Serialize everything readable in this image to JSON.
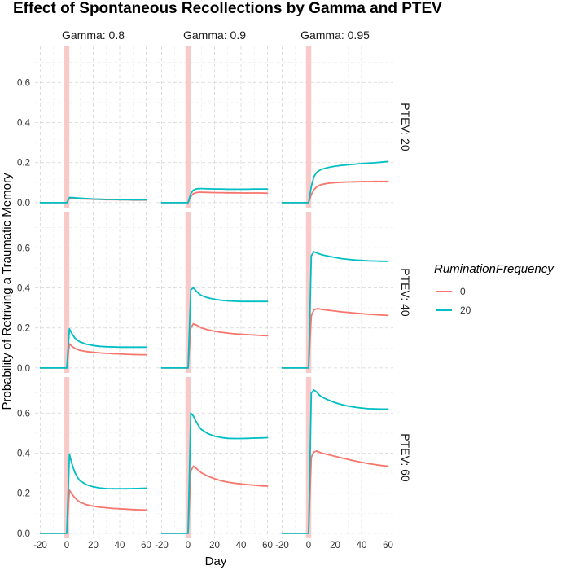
{
  "chart_data": {
    "type": "line",
    "title": "Effect of Spontaneous Recollections by Gamma and PTEV",
    "xlabel": "Day",
    "ylabel": "Probability of Retriving a Traumatic Memory",
    "xlim": [
      -20,
      60
    ],
    "ylim": [
      0,
      0.7
    ],
    "x_ticks": [
      "-20",
      "0",
      "20",
      "40",
      "60"
    ],
    "y_ticks": [
      "0.0",
      "0.2",
      "0.4",
      "0.6"
    ],
    "column_facets": [
      "Gamma: 0.8",
      "Gamma: 0.9",
      "Gamma: 0.95"
    ],
    "row_facets": [
      "PTEV: 20",
      "PTEV: 40",
      "PTEV: 60"
    ],
    "highlight_band": {
      "x": [
        -2,
        2
      ],
      "color": "#f8c4c4"
    },
    "grid": true,
    "legend": {
      "title": "RuminationFrequency",
      "placement": "right",
      "entries": [
        {
          "label": "0",
          "color": "#f8766d"
        },
        {
          "label": "20",
          "color": "#00bfc4"
        }
      ]
    },
    "x": [
      -20,
      0,
      2,
      4,
      6,
      8,
      10,
      15,
      20,
      25,
      30,
      35,
      40,
      45,
      50,
      55,
      60
    ],
    "panels": [
      {
        "gamma": "0.8",
        "ptev": "20",
        "series": [
          {
            "name": "0",
            "values": [
              0.0,
              0.0,
              0.022,
              0.022,
              0.021,
              0.02,
              0.019,
              0.018,
              0.017,
              0.016,
              0.015,
              0.015,
              0.014,
              0.014,
              0.013,
              0.013,
              0.013
            ]
          },
          {
            "name": "20",
            "values": [
              0.0,
              0.0,
              0.025,
              0.026,
              0.024,
              0.023,
              0.022,
              0.02,
              0.018,
              0.017,
              0.016,
              0.016,
              0.015,
              0.015,
              0.014,
              0.014,
              0.014
            ]
          }
        ]
      },
      {
        "gamma": "0.9",
        "ptev": "20",
        "series": [
          {
            "name": "0",
            "values": [
              0.0,
              0.0,
              0.03,
              0.045,
              0.05,
              0.052,
              0.052,
              0.051,
              0.05,
              0.05,
              0.049,
              0.049,
              0.048,
              0.048,
              0.048,
              0.048,
              0.047
            ]
          },
          {
            "name": "20",
            "values": [
              0.0,
              0.0,
              0.045,
              0.062,
              0.068,
              0.07,
              0.07,
              0.069,
              0.068,
              0.068,
              0.067,
              0.067,
              0.067,
              0.067,
              0.068,
              0.068,
              0.068
            ]
          }
        ]
      },
      {
        "gamma": "0.95",
        "ptev": "20",
        "series": [
          {
            "name": "0",
            "values": [
              0.0,
              0.0,
              0.04,
              0.065,
              0.078,
              0.086,
              0.091,
              0.097,
              0.1,
              0.102,
              0.103,
              0.104,
              0.105,
              0.105,
              0.106,
              0.106,
              0.106
            ]
          },
          {
            "name": "20",
            "values": [
              0.0,
              0.0,
              0.08,
              0.13,
              0.15,
              0.16,
              0.167,
              0.176,
              0.182,
              0.186,
              0.189,
              0.192,
              0.195,
              0.197,
              0.199,
              0.202,
              0.205
            ]
          }
        ]
      },
      {
        "gamma": "0.8",
        "ptev": "40",
        "series": [
          {
            "name": "0",
            "values": [
              0.0,
              0.0,
              0.12,
              0.108,
              0.098,
              0.092,
              0.088,
              0.082,
              0.078,
              0.075,
              0.073,
              0.071,
              0.07,
              0.068,
              0.067,
              0.066,
              0.066
            ]
          },
          {
            "name": "20",
            "values": [
              0.0,
              0.0,
              0.195,
              0.17,
              0.15,
              0.138,
              0.13,
              0.118,
              0.112,
              0.108,
              0.106,
              0.105,
              0.104,
              0.104,
              0.104,
              0.104,
              0.104
            ]
          }
        ]
      },
      {
        "gamma": "0.9",
        "ptev": "40",
        "series": [
          {
            "name": "0",
            "values": [
              0.0,
              0.0,
              0.2,
              0.22,
              0.215,
              0.208,
              0.2,
              0.19,
              0.183,
              0.178,
              0.174,
              0.17,
              0.168,
              0.166,
              0.164,
              0.162,
              0.161
            ]
          },
          {
            "name": "20",
            "values": [
              0.0,
              0.0,
              0.39,
              0.4,
              0.385,
              0.372,
              0.362,
              0.35,
              0.343,
              0.338,
              0.335,
              0.333,
              0.332,
              0.332,
              0.332,
              0.332,
              0.332
            ]
          }
        ]
      },
      {
        "gamma": "0.95",
        "ptev": "40",
        "series": [
          {
            "name": "0",
            "values": [
              0.0,
              0.0,
              0.26,
              0.29,
              0.295,
              0.295,
              0.292,
              0.288,
              0.284,
              0.28,
              0.277,
              0.274,
              0.271,
              0.268,
              0.266,
              0.264,
              0.262
            ]
          },
          {
            "name": "20",
            "values": [
              0.0,
              0.0,
              0.56,
              0.58,
              0.575,
              0.57,
              0.565,
              0.558,
              0.552,
              0.546,
              0.542,
              0.539,
              0.537,
              0.535,
              0.534,
              0.533,
              0.533
            ]
          }
        ]
      },
      {
        "gamma": "0.8",
        "ptev": "60",
        "series": [
          {
            "name": "0",
            "values": [
              0.0,
              0.0,
              0.215,
              0.195,
              0.178,
              0.165,
              0.155,
              0.142,
              0.135,
              0.13,
              0.127,
              0.124,
              0.122,
              0.12,
              0.118,
              0.117,
              0.116
            ]
          },
          {
            "name": "20",
            "values": [
              0.0,
              0.0,
              0.395,
              0.345,
              0.305,
              0.28,
              0.262,
              0.242,
              0.232,
              0.226,
              0.223,
              0.222,
              0.222,
              0.222,
              0.223,
              0.224,
              0.225
            ]
          }
        ]
      },
      {
        "gamma": "0.9",
        "ptev": "60",
        "series": [
          {
            "name": "0",
            "values": [
              0.0,
              0.0,
              0.31,
              0.335,
              0.325,
              0.313,
              0.302,
              0.285,
              0.272,
              0.262,
              0.255,
              0.25,
              0.246,
              0.243,
              0.24,
              0.237,
              0.235
            ]
          },
          {
            "name": "20",
            "values": [
              0.0,
              0.0,
              0.6,
              0.585,
              0.558,
              0.536,
              0.518,
              0.497,
              0.485,
              0.478,
              0.474,
              0.473,
              0.473,
              0.474,
              0.475,
              0.476,
              0.477
            ]
          }
        ]
      },
      {
        "gamma": "0.95",
        "ptev": "60",
        "series": [
          {
            "name": "0",
            "values": [
              0.0,
              0.0,
              0.38,
              0.405,
              0.41,
              0.405,
              0.4,
              0.392,
              0.384,
              0.376,
              0.368,
              0.361,
              0.354,
              0.348,
              0.343,
              0.338,
              0.335
            ]
          },
          {
            "name": "20",
            "values": [
              0.0,
              0.0,
              0.7,
              0.715,
              0.705,
              0.69,
              0.68,
              0.665,
              0.652,
              0.642,
              0.635,
              0.629,
              0.625,
              0.622,
              0.621,
              0.62,
              0.62
            ]
          }
        ]
      }
    ]
  }
}
